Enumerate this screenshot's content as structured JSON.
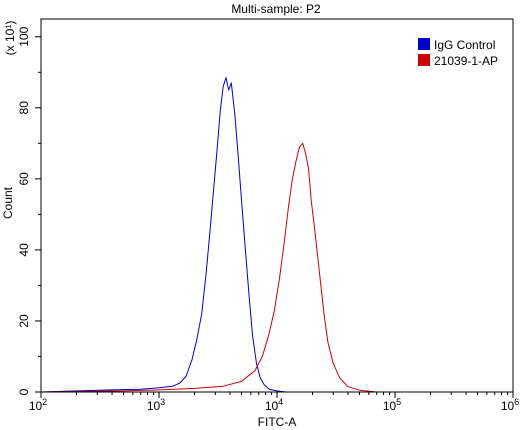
{
  "chart_data": {
    "type": "line",
    "title": "Multi-sample: P2",
    "xlabel": "FITC-A",
    "ylabel": "Count",
    "y_multiplier_label": "(x 10¹)",
    "x_scale": "log",
    "xlim": [
      100,
      1000000
    ],
    "ylim": [
      0,
      105
    ],
    "x_ticks": [
      {
        "value": 100,
        "base": "10",
        "exp": "2"
      },
      {
        "value": 1000,
        "base": "10",
        "exp": "3"
      },
      {
        "value": 10000,
        "base": "10",
        "exp": "4"
      },
      {
        "value": 100000,
        "base": "10",
        "exp": "5"
      },
      {
        "value": 1000000,
        "base": "10",
        "exp": "6"
      }
    ],
    "y_ticks": [
      0,
      20,
      40,
      60,
      80,
      100
    ],
    "grid": false,
    "legend_position": "top-right",
    "series": [
      {
        "name": "IgG Control",
        "color": "#0000cc",
        "points": [
          [
            100,
            0
          ],
          [
            200,
            0.3
          ],
          [
            400,
            0.6
          ],
          [
            700,
            0.8
          ],
          [
            1000,
            1.2
          ],
          [
            1300,
            1.6
          ],
          [
            1500,
            2.5
          ],
          [
            1700,
            4.5
          ],
          [
            1900,
            9
          ],
          [
            2100,
            15
          ],
          [
            2300,
            22
          ],
          [
            2500,
            33
          ],
          [
            2700,
            45
          ],
          [
            2900,
            57
          ],
          [
            3100,
            68
          ],
          [
            3300,
            79
          ],
          [
            3500,
            86
          ],
          [
            3700,
            88.5
          ],
          [
            3900,
            85
          ],
          [
            4100,
            87
          ],
          [
            4400,
            78
          ],
          [
            4700,
            66
          ],
          [
            5000,
            54
          ],
          [
            5400,
            40
          ],
          [
            5800,
            27
          ],
          [
            6200,
            16
          ],
          [
            6700,
            8
          ],
          [
            7200,
            4
          ],
          [
            7800,
            2
          ],
          [
            8600,
            0.8
          ],
          [
            10000,
            0.3
          ],
          [
            12000,
            0
          ]
        ]
      },
      {
        "name": "21039-1-AP",
        "color": "#cc0000",
        "points": [
          [
            100,
            0
          ],
          [
            500,
            0.3
          ],
          [
            1000,
            0.6
          ],
          [
            2000,
            1
          ],
          [
            3500,
            1.6
          ],
          [
            5000,
            3
          ],
          [
            6500,
            6
          ],
          [
            7500,
            10
          ],
          [
            8500,
            16
          ],
          [
            9500,
            23
          ],
          [
            10500,
            32
          ],
          [
            11500,
            42
          ],
          [
            12500,
            52
          ],
          [
            13500,
            60
          ],
          [
            14500,
            65
          ],
          [
            15500,
            69
          ],
          [
            16500,
            70
          ],
          [
            17500,
            67
          ],
          [
            18500,
            63
          ],
          [
            19500,
            54
          ],
          [
            21000,
            45
          ],
          [
            23000,
            33
          ],
          [
            25000,
            22
          ],
          [
            27000,
            14
          ],
          [
            30000,
            8
          ],
          [
            34000,
            4
          ],
          [
            40000,
            1.5
          ],
          [
            50000,
            0.5
          ],
          [
            70000,
            0
          ]
        ]
      }
    ]
  }
}
